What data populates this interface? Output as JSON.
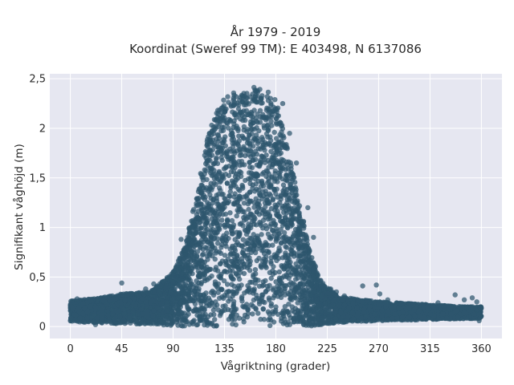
{
  "chart_data": {
    "type": "scatter",
    "title_lines": [
      "År 1979 - 2019",
      "Koordinat (Sweref 99 TM): E 403498, N 6137086"
    ],
    "xlabel": "Vågriktning (grader)",
    "ylabel": "Signifikant våghöjd (m)",
    "xlim": [
      -18,
      378
    ],
    "ylim": [
      -0.12,
      2.55
    ],
    "xticks": [
      0,
      45,
      90,
      135,
      180,
      225,
      270,
      315,
      360
    ],
    "xtick_labels": [
      "0",
      "45",
      "90",
      "135",
      "180",
      "225",
      "270",
      "315",
      "360"
    ],
    "yticks": [
      0,
      0.5,
      1,
      1.5,
      2,
      2.5
    ],
    "ytick_labels": [
      "0",
      "0,5",
      "1",
      "1,5",
      "2",
      "2,5"
    ],
    "grid": true,
    "colors": {
      "background": "#e6e7f1",
      "points": "#2e566e",
      "grid": "#ffffff"
    },
    "envelope": [
      [
        0,
        0.05,
        0.26
      ],
      [
        20,
        0.04,
        0.28
      ],
      [
        45,
        0.03,
        0.33
      ],
      [
        70,
        0.02,
        0.35
      ],
      [
        90,
        0.01,
        0.55
      ],
      [
        100,
        0.0,
        0.8
      ],
      [
        110,
        0.0,
        1.3
      ],
      [
        120,
        0.0,
        1.9
      ],
      [
        130,
        0.0,
        2.25
      ],
      [
        140,
        0.0,
        2.35
      ],
      [
        150,
        0.0,
        2.38
      ],
      [
        160,
        0.0,
        2.42
      ],
      [
        170,
        0.0,
        2.4
      ],
      [
        180,
        0.0,
        2.3
      ],
      [
        190,
        0.0,
        1.8
      ],
      [
        200,
        0.0,
        1.3
      ],
      [
        210,
        0.0,
        0.75
      ],
      [
        220,
        0.02,
        0.45
      ],
      [
        235,
        0.04,
        0.3
      ],
      [
        270,
        0.06,
        0.25
      ],
      [
        315,
        0.07,
        0.22
      ],
      [
        345,
        0.08,
        0.2
      ],
      [
        360,
        0.08,
        0.2
      ]
    ],
    "outliers": [
      [
        2,
        0.18
      ],
      [
        4,
        0.06
      ],
      [
        6,
        0.28
      ],
      [
        11,
        0.13
      ],
      [
        22,
        0.02
      ],
      [
        29,
        0.26
      ],
      [
        38,
        0.28
      ],
      [
        40,
        0.03
      ],
      [
        45,
        0.44
      ],
      [
        50,
        0.32
      ],
      [
        57,
        0.21
      ],
      [
        63,
        0.28
      ],
      [
        66,
        0.38
      ],
      [
        68,
        0.34
      ],
      [
        72,
        0.26
      ],
      [
        73,
        0.43
      ],
      [
        79,
        0.41
      ],
      [
        85,
        0.19
      ],
      [
        90,
        0.45
      ],
      [
        95,
        0.42
      ],
      [
        97,
        0.88
      ],
      [
        99,
        0.65
      ],
      [
        103,
        0.86
      ],
      [
        106,
        0.72
      ],
      [
        186,
        2.25
      ],
      [
        192,
        1.95
      ],
      [
        198,
        1.65
      ],
      [
        208,
        1.2
      ],
      [
        213,
        0.9
      ],
      [
        228,
        0.38
      ],
      [
        233,
        0.35
      ],
      [
        240,
        0.31
      ],
      [
        256,
        0.41
      ],
      [
        268,
        0.42
      ],
      [
        271,
        0.33
      ],
      [
        278,
        0.27
      ],
      [
        290,
        0.23
      ],
      [
        300,
        0.22
      ],
      [
        318,
        0.2
      ],
      [
        322,
        0.24
      ],
      [
        337,
        0.32
      ],
      [
        345,
        0.27
      ],
      [
        352,
        0.29
      ],
      [
        356,
        0.25
      ],
      [
        358,
        0.06
      ]
    ]
  }
}
